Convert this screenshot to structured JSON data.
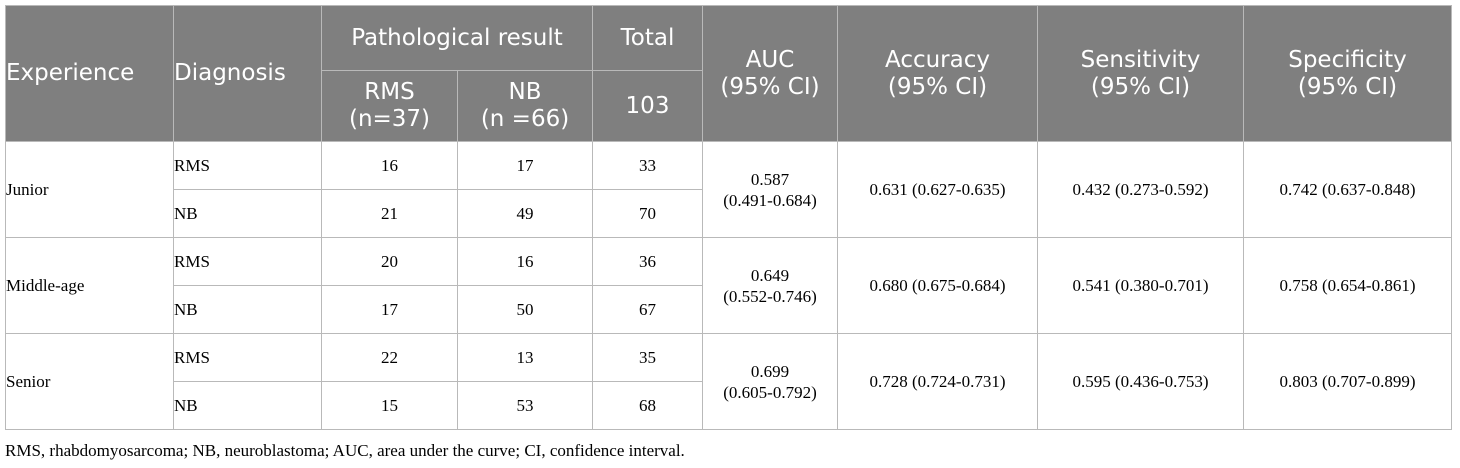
{
  "header": {
    "experience": "Experience",
    "diagnosis": "Diagnosis",
    "pathological_result": "Pathological result",
    "total": "Total",
    "total_n": "103",
    "rms": "RMS",
    "rms_n": "(n=37)",
    "nb": "NB",
    "nb_n": "(n =66)",
    "auc": "AUC",
    "auc_ci": "(95% CI)",
    "accuracy": "Accuracy",
    "accuracy_ci": "(95% CI)",
    "sensitivity": "Sensitivity",
    "sensitivity_ci": "(95% CI)",
    "specificity": "Specificity",
    "specificity_ci": "(95% CI)"
  },
  "groups": [
    {
      "experience": "Junior",
      "auc_value": "0.587",
      "auc_ci": "(0.491-0.684)",
      "accuracy": "0.631 (0.627-0.635)",
      "sensitivity": "0.432 (0.273-0.592)",
      "specificity": "0.742 (0.637-0.848)",
      "rows": [
        {
          "diagnosis": "RMS",
          "rms": "16",
          "nb": "17",
          "total": "33"
        },
        {
          "diagnosis": "NB",
          "rms": "21",
          "nb": "49",
          "total": "70"
        }
      ]
    },
    {
      "experience": "Middle-age",
      "auc_value": "0.649",
      "auc_ci": "(0.552-0.746)",
      "accuracy": "0.680 (0.675-0.684)",
      "sensitivity": "0.541 (0.380-0.701)",
      "specificity": "0.758 (0.654-0.861)",
      "rows": [
        {
          "diagnosis": "RMS",
          "rms": "20",
          "nb": "16",
          "total": "36"
        },
        {
          "diagnosis": "NB",
          "rms": "17",
          "nb": "50",
          "total": "67"
        }
      ]
    },
    {
      "experience": "Senior",
      "auc_value": "0.699",
      "auc_ci": "(0.605-0.792)",
      "accuracy": "0.728 (0.724-0.731)",
      "sensitivity": "0.595 (0.436-0.753)",
      "specificity": "0.803 (0.707-0.899)",
      "rows": [
        {
          "diagnosis": "RMS",
          "rms": "22",
          "nb": "13",
          "total": "35"
        },
        {
          "diagnosis": "NB",
          "rms": "15",
          "nb": "53",
          "total": "68"
        }
      ]
    }
  ],
  "footnote": "RMS, rhabdomyosarcoma; NB, neuroblastoma; AUC, area under the curve; CI, confidence interval."
}
